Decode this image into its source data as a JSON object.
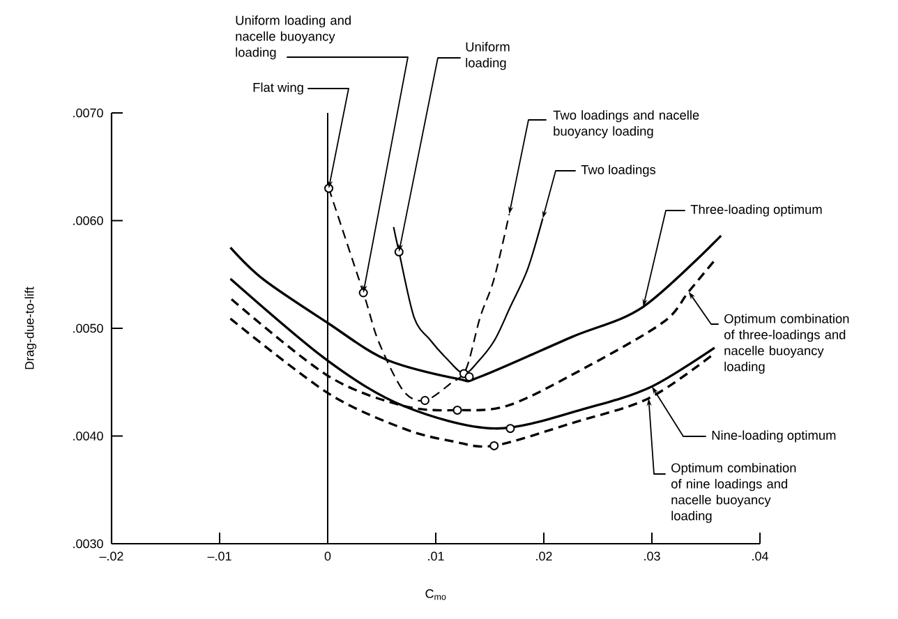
{
  "chart_data": {
    "type": "line",
    "xlabel": "C$_{mo}$",
    "ylabel": "Drag-due-to-lift",
    "xlim": [
      -0.02,
      0.04
    ],
    "ylim": [
      0.003,
      0.007
    ],
    "xticks": [
      {
        "value": -0.02,
        "label": "–.02"
      },
      {
        "value": -0.01,
        "label": "–.01"
      },
      {
        "value": 0,
        "label": "0"
      },
      {
        "value": 0.01,
        "label": ".01"
      },
      {
        "value": 0.02,
        "label": ".02"
      },
      {
        "value": 0.03,
        "label": ".03"
      },
      {
        "value": 0.04,
        "label": ".04"
      }
    ],
    "yticks": [
      {
        "value": 0.003,
        "label": ".0030"
      },
      {
        "value": 0.004,
        "label": ".0040"
      },
      {
        "value": 0.005,
        "label": ".0050"
      },
      {
        "value": 0.006,
        "label": ".0060"
      },
      {
        "value": 0.007,
        "label": ".0070"
      }
    ],
    "ref_lines": [
      {
        "axis": "x",
        "value": 0
      }
    ],
    "series": [
      {
        "name": "Two loadings",
        "color": "#000000",
        "line_style": "solid",
        "x": [
          0.0061,
          0.0066,
          0.008,
          0.0095,
          0.011,
          0.0126,
          0.014,
          0.0155,
          0.0169,
          0.0185,
          0.0199
        ],
        "values": [
          0.00594,
          0.00571,
          0.0051,
          0.00489,
          0.00472,
          0.00458,
          0.0047,
          0.0049,
          0.0052,
          0.00555,
          0.00602
        ]
      },
      {
        "name": "Two loadings and nacelle buoyancy loading",
        "color": "#000000",
        "line_style": "dashed",
        "x": [
          0.0001,
          0.0033,
          0.0047,
          0.007,
          0.009,
          0.0114,
          0.0128,
          0.0141,
          0.0154,
          0.0168
        ],
        "values": [
          0.0063,
          0.00533,
          0.00488,
          0.00442,
          0.00433,
          0.00449,
          0.00462,
          0.0051,
          0.00546,
          0.00606
        ]
      },
      {
        "name": "Three-loading optimum",
        "color": "#000000",
        "line_style": "solid",
        "x": [
          -0.009,
          -0.0059,
          0,
          0.0054,
          0.0121,
          0.0141,
          0.0226,
          0.0292,
          0.0364
        ],
        "values": [
          0.00575,
          0.00545,
          0.00505,
          0.00471,
          0.00453,
          0.00455,
          0.00492,
          0.0052,
          0.00586
        ]
      },
      {
        "name": "Optimum combination of three-loadings and nacelle buoyancy loading",
        "color": "#000000",
        "line_style": "dashed",
        "x": [
          -0.0089,
          0,
          0.007,
          0.012,
          0.0169,
          0.0243,
          0.0311,
          0.0334,
          0.0358
        ],
        "values": [
          0.00527,
          0.00456,
          0.00428,
          0.00424,
          0.00429,
          0.00466,
          0.00506,
          0.00534,
          0.00563
        ]
      },
      {
        "name": "Nine-loading optimum",
        "color": "#000000",
        "line_style": "solid",
        "x": [
          -0.009,
          0,
          0.007,
          0.0155,
          0.024,
          0.03,
          0.0358
        ],
        "values": [
          0.00546,
          0.0047,
          0.00428,
          0.00407,
          0.00426,
          0.00446,
          0.00482
        ]
      },
      {
        "name": "Optimum combination of nine loadings and nacelle buoyancy loading",
        "color": "#000000",
        "line_style": "dashed",
        "x": [
          -0.009,
          0,
          0.007,
          0.0116,
          0.0154,
          0.0226,
          0.0297,
          0.0357
        ],
        "values": [
          0.00509,
          0.0044,
          0.00407,
          0.00395,
          0.00391,
          0.00412,
          0.00435,
          0.00476
        ]
      },
      {
        "type": "scatter",
        "marker": "circle",
        "color": "#000000",
        "x": [
          0.0001,
          0.0033,
          0.0066,
          0.009,
          0.0126,
          0.0131,
          0.012,
          0.0169,
          0.0154
        ],
        "values": [
          0.0063,
          0.00533,
          0.00571,
          0.00433,
          0.00458,
          0.00455,
          0.00424,
          0.00407,
          0.00391
        ]
      }
    ],
    "annotations": [
      {
        "text": "Flat wing",
        "x": 0.0001,
        "y": 0.0063
      },
      {
        "text": "Uniform loading and nacelle buoyancy loading",
        "x": 0.0033,
        "y": 0.00533
      },
      {
        "text": "Uniform loading",
        "x": 0.0066,
        "y": 0.00571
      }
    ]
  }
}
